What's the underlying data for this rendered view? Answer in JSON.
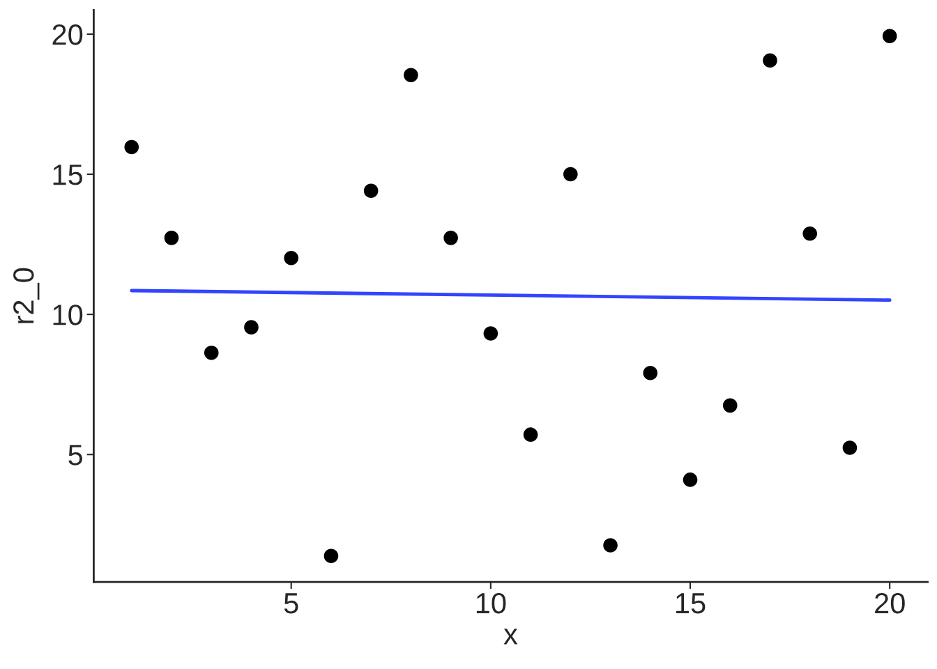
{
  "chart_data": {
    "type": "scatter",
    "xlabel": "x",
    "ylabel": "r2_0",
    "series": [
      {
        "marker": "circle",
        "color": "#000000",
        "x": [
          1,
          2,
          3,
          4,
          5,
          6,
          7,
          8,
          9,
          10,
          11,
          12,
          13,
          14,
          15,
          16,
          17,
          18,
          19,
          20
        ],
        "values": [
          15.97,
          12.73,
          8.63,
          9.54,
          12.01,
          1.38,
          14.41,
          18.54,
          12.73,
          9.32,
          5.71,
          15.0,
          1.76,
          7.91,
          4.1,
          6.75,
          19.06,
          12.88,
          5.24,
          19.93
        ]
      },
      {
        "type": "line",
        "color": "#3344ff",
        "x": [
          1,
          20
        ],
        "values": [
          10.85,
          10.51
        ]
      }
    ],
    "grid": false,
    "legend": false,
    "xlim": [
      0.05,
      20.95
    ],
    "ylim": [
      0.45,
      20.86
    ],
    "xticks": [
      5,
      10,
      15,
      20
    ],
    "yticks": [
      5,
      10,
      15,
      20
    ]
  }
}
